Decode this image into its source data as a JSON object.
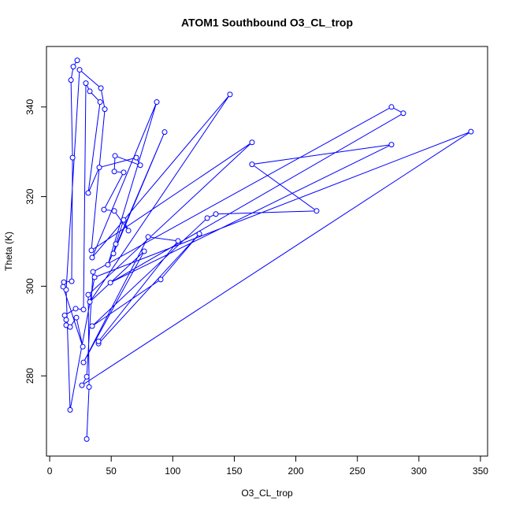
{
  "chart_data": {
    "type": "line",
    "markers": true,
    "title": "ATOM1 Southbound O3_CL_trop",
    "x_label": "O3_CL_trop",
    "y_label": "Theta (K)",
    "color": "#0000ff",
    "x": [
      30.1,
      32.0,
      31.3,
      164.4,
      33.9,
      44.8,
      41.6,
      24.3,
      13.4,
      16.6,
      36.5,
      342.3,
      26.2,
      30.1,
      35.2,
      277.7,
      287.3,
      49.3,
      277.7,
      164.4,
      216.9,
      135.0,
      128.0,
      34.5,
      90.2,
      121.6,
      39.7,
      39.7,
      104.3,
      80.0,
      27.5,
      76.8,
      32.6,
      146.5,
      34.5,
      87.0,
      47.3,
      93.4,
      51.8,
      53.7,
      60.1,
      64.0,
      52.5,
      44.1,
      60.1,
      52.5,
      53.1,
      73.6,
      70.4,
      40.3,
      31.3,
      41.0,
      32.6,
      29.4,
      27.5,
      21.1,
      12.2,
      13.4,
      13.4,
      16.6,
      21.7,
      26.9,
      10.9,
      11.5,
      17.9,
      18.6,
      17.3,
      19.2,
      22.4
    ],
    "values": [
      265.9,
      277.5,
      298.1,
      332.1,
      308.0,
      339.5,
      344.2,
      348.3,
      299.2,
      272.4,
      302.0,
      334.5,
      277.9,
      279.8,
      303.2,
      340.0,
      338.6,
      300.8,
      331.6,
      327.2,
      316.8,
      316.1,
      315.2,
      291.1,
      301.5,
      311.7,
      287.2,
      287.7,
      310.1,
      311.0,
      283.0,
      307.8,
      296.5,
      342.8,
      306.4,
      341.1,
      304.8,
      334.4,
      307.3,
      309.4,
      314.8,
      312.4,
      316.8,
      317.1,
      325.4,
      325.6,
      329.1,
      327.0,
      328.7,
      326.5,
      320.8,
      341.1,
      343.5,
      345.3,
      294.8,
      295.0,
      293.5,
      292.5,
      291.3,
      290.9,
      293.0,
      286.5,
      299.9,
      300.9,
      301.1,
      328.7,
      346.0,
      349.0,
      350.4
    ],
    "xlim": [
      -2.6,
      355.8
    ],
    "ylim": [
      262.1,
      353.5
    ],
    "xticks": [
      0,
      50,
      100,
      150,
      200,
      250,
      300,
      350
    ],
    "yticks": [
      280,
      300,
      320,
      340
    ],
    "grid": false
  }
}
